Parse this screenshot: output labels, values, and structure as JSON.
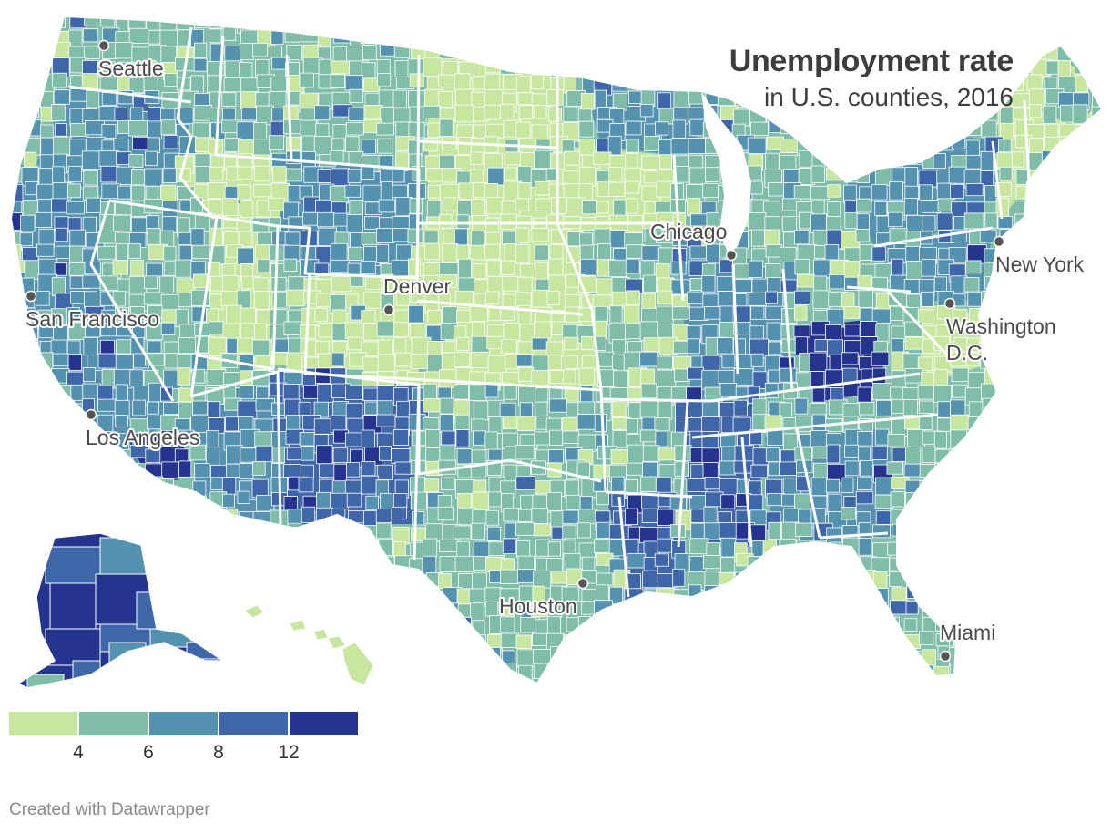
{
  "title": "Unemployment rate",
  "subtitle": "in U.S. counties, 2016",
  "credit": "Created with Datawrapper",
  "legend": {
    "bins": [
      {
        "color": "#c7e6a0"
      },
      {
        "color": "#7fbcaa"
      },
      {
        "color": "#5592b0"
      },
      {
        "color": "#3f66a8"
      },
      {
        "color": "#25348f"
      }
    ],
    "tick_labels": [
      "4",
      "6",
      "8",
      "12"
    ]
  },
  "palette": {
    "land_outline": "#ffffff",
    "city_dot": "#555555",
    "label_text": "#4a4a4a"
  },
  "cities": [
    {
      "name": "Seattle"
    },
    {
      "name": "San Francisco"
    },
    {
      "name": "Los Angeles"
    },
    {
      "name": "Denver"
    },
    {
      "name": "Chicago"
    },
    {
      "name": "New York"
    },
    {
      "name": "Washington D.C."
    },
    {
      "name": "Houston"
    },
    {
      "name": "Miami"
    }
  ]
}
